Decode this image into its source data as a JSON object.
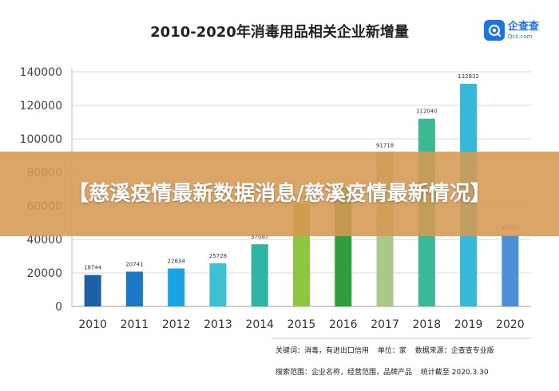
{
  "banner": {
    "text": "【慈溪疫情最新数据消息/慈溪疫情最新情况】"
  },
  "brand": {
    "name": "企查查",
    "domain": "Qcc.com"
  },
  "footnotes": {
    "line1": [
      "关键词：消毒，有进出口信用",
      "单位：家",
      "数据来源：企查查专业版"
    ],
    "line2": [
      "搜索范围：企业名称，经营范围，品牌产品",
      "统计截至 2020.3.30"
    ]
  },
  "chart_data": {
    "type": "bar",
    "title": "2010-2020年消毒用品相关企业新增量",
    "categories": [
      "2010",
      "2011",
      "2012",
      "2013",
      "2014",
      "2015",
      "2016",
      "2017",
      "2018",
      "2019",
      "2020"
    ],
    "values": [
      18744,
      20741,
      22634,
      25728,
      37067,
      61238,
      71000,
      91718,
      112040,
      132832,
      42702
    ],
    "data_labels": [
      "18744",
      "20741",
      "22634",
      "25728",
      "37067",
      "61238",
      "",
      "91718",
      "112040",
      "132832",
      "42702"
    ],
    "yticks": [
      0,
      20000,
      40000,
      60000,
      80000,
      100000,
      120000,
      140000
    ],
    "ytick_labels": [
      "0",
      "20000",
      "40000",
      "60000",
      "80000",
      "100000",
      "120000",
      "140000"
    ],
    "ylim": [
      0,
      140000
    ],
    "grid": true,
    "colors": [
      "#1f5fa6",
      "#1b78c8",
      "#1aa3e0",
      "#3dbfd4",
      "#2cb5a0",
      "#8dc63f",
      "#2e9e3c",
      "#a9c98a",
      "#3cb896",
      "#35b9d6",
      "#4a90d6"
    ]
  }
}
